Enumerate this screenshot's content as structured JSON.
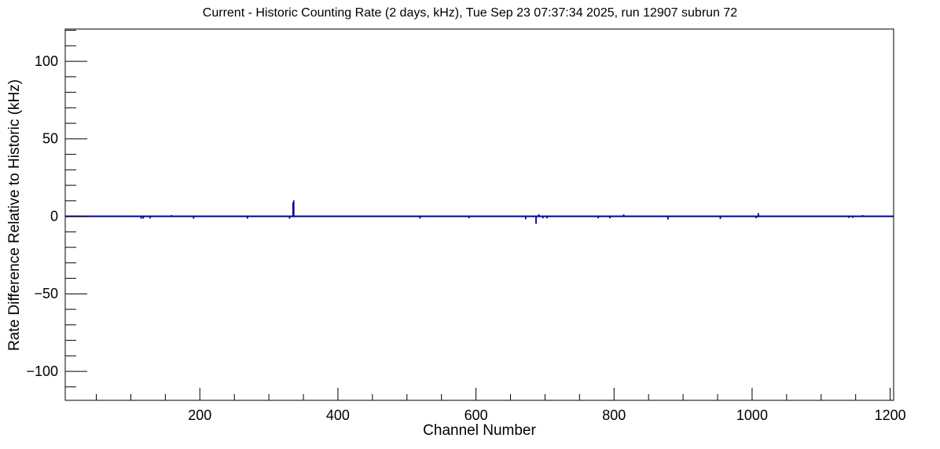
{
  "chart_data": {
    "type": "line",
    "title": "Current - Historic Counting Rate (2 days, kHz), Tue Sep 23 07:37:34 2025, run 12907 subrun 72",
    "xlabel": "Channel Number",
    "ylabel": "Rate Difference Relative to Historic (kHz)",
    "run_info": {
      "date": "Tue Sep 23 07:37:34 2025",
      "run": "12907",
      "subrun": "72",
      "window": "2 days",
      "units": "kHz"
    },
    "xlim": [
      5,
      1205
    ],
    "ylim": [
      -118.7,
      120.8
    ],
    "grid": false,
    "legend": "none",
    "line_color": "#00009c",
    "frame_color": "#000000",
    "background_color": "#ffffff",
    "baseline_value": 0,
    "x_axis": {
      "major_ticks": [
        {
          "value": 200,
          "label": "200"
        },
        {
          "value": 400,
          "label": "400"
        },
        {
          "value": 600,
          "label": "600"
        },
        {
          "value": 800,
          "label": "800"
        },
        {
          "value": 1000,
          "label": "1000"
        },
        {
          "value": 1200,
          "label": "1200"
        }
      ],
      "minor_step": 50
    },
    "y_axis": {
      "major_ticks": [
        {
          "value": 100,
          "label": "100"
        },
        {
          "value": 50,
          "label": "50"
        },
        {
          "value": 0,
          "label": "0"
        },
        {
          "value": -50,
          "label": "−50"
        },
        {
          "value": -100,
          "label": "−100"
        }
      ],
      "minor_step": 10
    },
    "series_description": "Flat line at 0 kHz across all channels with small deviations at the channels listed below",
    "deviations": [
      {
        "channel": 115,
        "value": -1.0
      },
      {
        "channel": 118,
        "value": -1.0
      },
      {
        "channel": 128,
        "value": -0.9
      },
      {
        "channel": 159,
        "value": 0.8
      },
      {
        "channel": 191,
        "value": -1.0
      },
      {
        "channel": 269,
        "value": -1.0
      },
      {
        "channel": 330,
        "value": -1.0
      },
      {
        "channel": 335,
        "value": 8.9
      },
      {
        "channel": 336,
        "value": 10.3
      },
      {
        "channel": 519,
        "value": -1.0
      },
      {
        "channel": 590,
        "value": -0.7
      },
      {
        "channel": 672,
        "value": -1.4
      },
      {
        "channel": 687,
        "value": -4.3
      },
      {
        "channel": 691,
        "value": 1.3
      },
      {
        "channel": 697,
        "value": -0.8
      },
      {
        "channel": 703,
        "value": -0.8
      },
      {
        "channel": 777,
        "value": -0.8
      },
      {
        "channel": 794,
        "value": -0.8
      },
      {
        "channel": 814,
        "value": 1.2
      },
      {
        "channel": 878,
        "value": -1.6
      },
      {
        "channel": 954,
        "value": -1.2
      },
      {
        "channel": 1006,
        "value": -0.8
      },
      {
        "channel": 1009,
        "value": 2.1
      },
      {
        "channel": 1140,
        "value": -0.5
      },
      {
        "channel": 1146,
        "value": -0.5
      },
      {
        "channel": 1160,
        "value": 0.8
      }
    ]
  }
}
